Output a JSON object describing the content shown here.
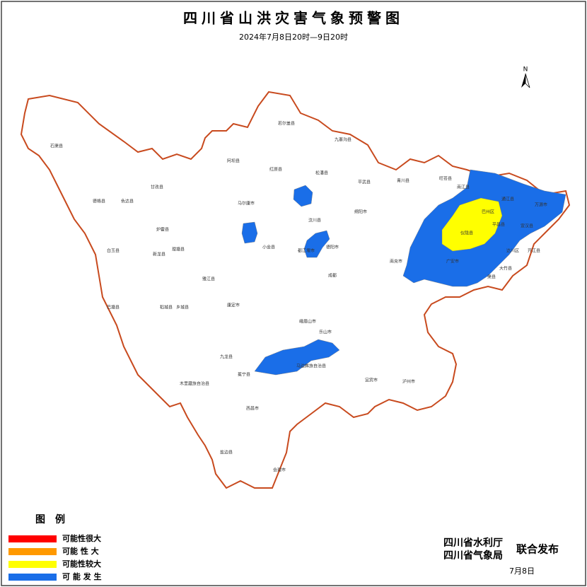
{
  "header": {
    "title": "四川省山洪灾害气象预警图",
    "subtitle": "2024年7月8日20时—9日20时"
  },
  "north": "N",
  "legend": {
    "title": "图　例",
    "items": [
      {
        "label": "可能性很大",
        "color": "#ff0000"
      },
      {
        "label": "可能 性 大",
        "color": "#ff9900"
      },
      {
        "label": "可能性较大",
        "color": "#ffff00"
      },
      {
        "label": "可 能 发 生",
        "color": "#1a6ee8"
      }
    ]
  },
  "footer": {
    "publishers": [
      "四川省水利厅",
      "四川省气象局"
    ],
    "joint": "联合发布",
    "date": "7月8日"
  },
  "map": {
    "labels": [
      "石渠县",
      "德格县",
      "色达县",
      "甘孜县",
      "白玉县",
      "新龙县",
      "炉霍县",
      "阿坝县",
      "红原县",
      "若尔盖县",
      "九寨沟县",
      "松潘县",
      "平武县",
      "青川县",
      "旺苍县",
      "南江县",
      "通江县",
      "万源市",
      "宣汉县",
      "达川区",
      "巴州区",
      "平昌县",
      "仪陇县",
      "渠县",
      "大竹县",
      "开江县",
      "理塘县",
      "巴塘县",
      "稻城县",
      "乡城县",
      "康定市",
      "九龙县",
      "冕宁县",
      "西昌市",
      "会理市",
      "盐边县",
      "雅江县",
      "马尔康市",
      "小金县",
      "汶川县",
      "都江堰市",
      "成都",
      "乐山市",
      "宜宾市",
      "泸州市",
      "绵阳市",
      "南充市",
      "广安市",
      "德阳市",
      "峨眉山市",
      "马边彝族自治县",
      "木里藏族自治县"
    ]
  }
}
